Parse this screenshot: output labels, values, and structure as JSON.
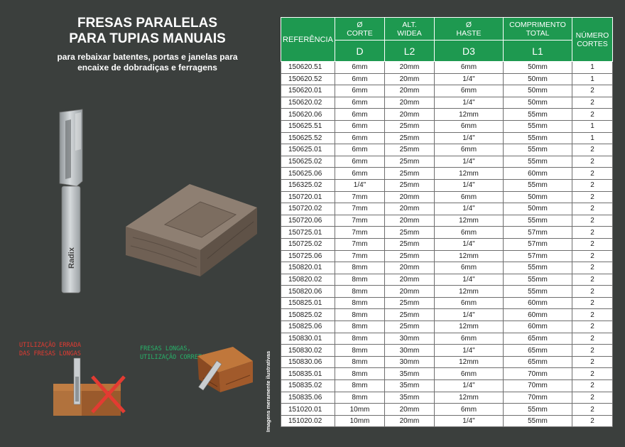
{
  "title": {
    "line1": "FRESAS PARALELAS",
    "line2": "PARA TUPIAS MANUAIS"
  },
  "subtitle": {
    "line1": "para rebaixar batentes, portas e janelas para",
    "line2": "encaixe de dobradiças e ferragens"
  },
  "bit_brand": "Radix",
  "wrong_use": {
    "line1": "UTILIZAÇÃO ERRADA",
    "line2": "DAS FRESAS LONGAS"
  },
  "correct_use": {
    "line1": "FRESAS LONGAS,",
    "line2": "UTILIZAÇÃO CORRETA"
  },
  "note": "Imagens meramente ilustrativas",
  "colors": {
    "background": "#3b3f3d",
    "header": "#1e9950",
    "wrong": "#e33b32",
    "correct": "#27b36a"
  },
  "table": {
    "headers": {
      "referencia": "REFERÊNCIA",
      "corte": {
        "line1": "Ø",
        "line2": "CORTE",
        "code": "D"
      },
      "alt": {
        "line1": "ALT.",
        "line2": "WIDEA",
        "code": "L2"
      },
      "haste": {
        "line1": "Ø",
        "line2": "HASTE",
        "code": "D3"
      },
      "comprimento": {
        "line1": "COMPRIMENTO",
        "line2": "TOTAL",
        "code": "L1"
      },
      "numero": {
        "line1": "NÚMERO",
        "line2": "CORTES"
      }
    },
    "rows": [
      [
        "150620.51",
        "6mm",
        "20mm",
        "6mm",
        "50mm",
        "1"
      ],
      [
        "150620.52",
        "6mm",
        "20mm",
        "1/4\"",
        "50mm",
        "1"
      ],
      [
        "150620.01",
        "6mm",
        "20mm",
        "6mm",
        "50mm",
        "2"
      ],
      [
        "150620.02",
        "6mm",
        "20mm",
        "1/4\"",
        "50mm",
        "2"
      ],
      [
        "150620.06",
        "6mm",
        "20mm",
        "12mm",
        "55mm",
        "2"
      ],
      [
        "150625.51",
        "6mm",
        "25mm",
        "6mm",
        "55mm",
        "1"
      ],
      [
        "150625.52",
        "6mm",
        "25mm",
        "1/4\"",
        "55mm",
        "1"
      ],
      [
        "150625.01",
        "6mm",
        "25mm",
        "6mm",
        "55mm",
        "2"
      ],
      [
        "150625.02",
        "6mm",
        "25mm",
        "1/4\"",
        "55mm",
        "2"
      ],
      [
        "150625.06",
        "6mm",
        "25mm",
        "12mm",
        "60mm",
        "2"
      ],
      [
        "156325.02",
        "1/4\"",
        "25mm",
        "1/4\"",
        "55mm",
        "2"
      ],
      [
        "150720.01",
        "7mm",
        "20mm",
        "6mm",
        "50mm",
        "2"
      ],
      [
        "150720.02",
        "7mm",
        "20mm",
        "1/4\"",
        "50mm",
        "2"
      ],
      [
        "150720.06",
        "7mm",
        "20mm",
        "12mm",
        "55mm",
        "2"
      ],
      [
        "150725.01",
        "7mm",
        "25mm",
        "6mm",
        "57mm",
        "2"
      ],
      [
        "150725.02",
        "7mm",
        "25mm",
        "1/4\"",
        "57mm",
        "2"
      ],
      [
        "150725.06",
        "7mm",
        "25mm",
        "12mm",
        "57mm",
        "2"
      ],
      [
        "150820.01",
        "8mm",
        "20mm",
        "6mm",
        "55mm",
        "2"
      ],
      [
        "150820.02",
        "8mm",
        "20mm",
        "1/4\"",
        "55mm",
        "2"
      ],
      [
        "150820.06",
        "8mm",
        "20mm",
        "12mm",
        "55mm",
        "2"
      ],
      [
        "150825.01",
        "8mm",
        "25mm",
        "6mm",
        "60mm",
        "2"
      ],
      [
        "150825.02",
        "8mm",
        "25mm",
        "1/4\"",
        "60mm",
        "2"
      ],
      [
        "150825.06",
        "8mm",
        "25mm",
        "12mm",
        "60mm",
        "2"
      ],
      [
        "150830.01",
        "8mm",
        "30mm",
        "6mm",
        "65mm",
        "2"
      ],
      [
        "150830.02",
        "8mm",
        "30mm",
        "1/4\"",
        "65mm",
        "2"
      ],
      [
        "150830.06",
        "8mm",
        "30mm",
        "12mm",
        "65mm",
        "2"
      ],
      [
        "150835.01",
        "8mm",
        "35mm",
        "6mm",
        "70mm",
        "2"
      ],
      [
        "150835.02",
        "8mm",
        "35mm",
        "1/4\"",
        "70mm",
        "2"
      ],
      [
        "150835.06",
        "8mm",
        "35mm",
        "12mm",
        "70mm",
        "2"
      ],
      [
        "151020.01",
        "10mm",
        "20mm",
        "6mm",
        "55mm",
        "2"
      ],
      [
        "151020.02",
        "10mm",
        "20mm",
        "1/4\"",
        "55mm",
        "2"
      ]
    ]
  }
}
